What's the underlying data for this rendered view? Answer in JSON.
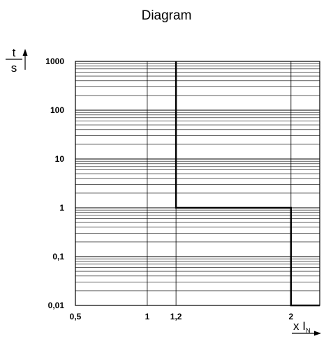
{
  "chart_data": {
    "type": "line",
    "title": "Diagram",
    "ylabel": {
      "numerator": "t",
      "denominator": "s"
    },
    "xlabel": {
      "prefix": "x I",
      "subscript": "N"
    },
    "xlim": [
      0.5,
      2.2
    ],
    "ylim": [
      0.01,
      1000
    ],
    "yscale": "log",
    "grid": true,
    "x_ticks": [
      {
        "value": 0.5,
        "label": "0,5"
      },
      {
        "value": 1,
        "label": "1"
      },
      {
        "value": 1.2,
        "label": "1,2"
      },
      {
        "value": 2,
        "label": "2"
      }
    ],
    "y_ticks": [
      {
        "value": 1000,
        "label": "1000"
      },
      {
        "value": 100,
        "label": "100"
      },
      {
        "value": 10,
        "label": "10"
      },
      {
        "value": 1,
        "label": "1"
      },
      {
        "value": 0.1,
        "label": "0,1"
      },
      {
        "value": 0.01,
        "label": "0,01"
      }
    ],
    "series": [
      {
        "x": [
          1.2,
          1.2,
          2.0,
          2.0,
          2.2
        ],
        "y": [
          1000,
          1,
          1,
          0.01,
          0.01
        ]
      }
    ]
  }
}
